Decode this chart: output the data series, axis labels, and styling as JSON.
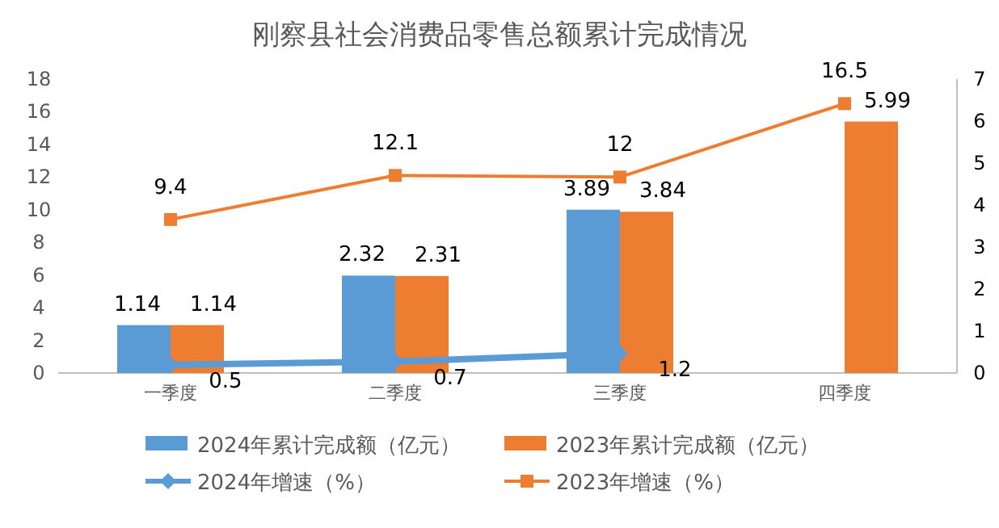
{
  "chart_data": {
    "type": "bar",
    "title": "刚察县社会消费品零售总额累计完成情况",
    "categories": [
      "一季度",
      "二季度",
      "三季度",
      "四季度"
    ],
    "series": [
      {
        "name": "2024年累计完成额（亿元）",
        "axis": "y2",
        "color": "#5b9bd5",
        "values": [
          1.14,
          2.32,
          3.89,
          null
        ]
      },
      {
        "name": "2023年累计完成额（亿元）",
        "axis": "y2",
        "color": "#ed7d31",
        "values": [
          1.14,
          2.31,
          3.84,
          5.99
        ]
      },
      {
        "name": "2024年增速（%）",
        "type": "line",
        "color": "#5b9bd5",
        "marker": "diamond",
        "values": [
          0.5,
          0.7,
          1.2,
          null
        ]
      },
      {
        "name": "2023年增速（%）",
        "type": "line",
        "color": "#ed7d31",
        "marker": "square",
        "values": [
          9.4,
          12.1,
          12,
          16.5
        ]
      }
    ],
    "ylim": [
      0,
      18
    ],
    "yticks": [
      0,
      2,
      4,
      6,
      8,
      10,
      12,
      14,
      16,
      18
    ],
    "y2lim": [
      0,
      7
    ],
    "y2ticks": [
      0,
      1,
      2,
      3,
      4,
      5,
      6,
      7
    ],
    "data_labels": true,
    "legend": "bottom",
    "grid": false
  }
}
